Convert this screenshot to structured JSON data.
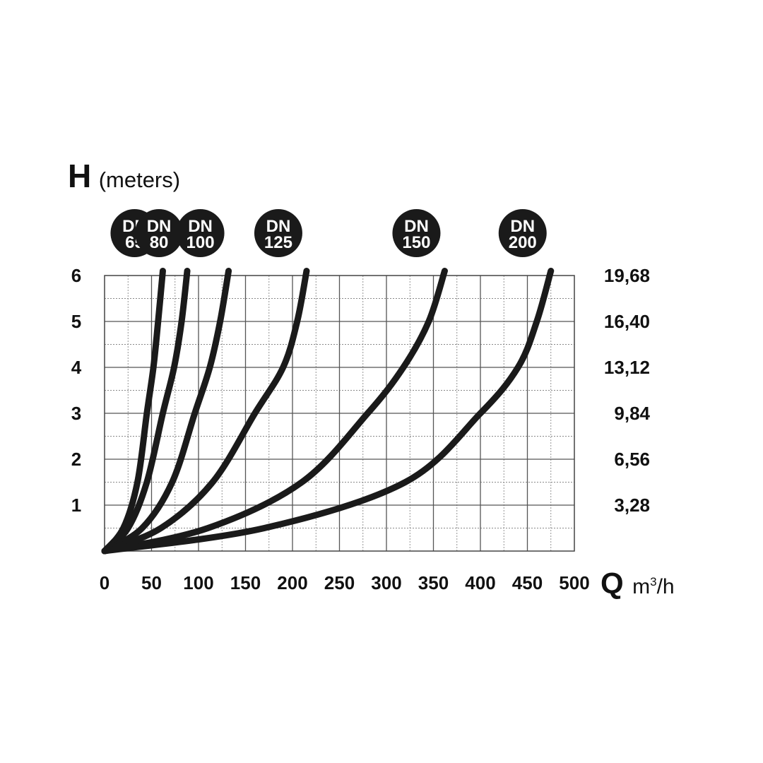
{
  "chart_data": {
    "type": "line",
    "y_axis": {
      "symbol": "H",
      "unit": "(meters)",
      "ylim": [
        0,
        6
      ],
      "ticks": [
        "1",
        "2",
        "3",
        "4",
        "5",
        "6"
      ]
    },
    "y2_axis": {
      "ticks": [
        "3,28",
        "6,56",
        "9,84",
        "13,12",
        "16,40",
        "19,68"
      ]
    },
    "x_axis": {
      "symbol": "Q",
      "unit": "m",
      "unit_sup": "3",
      "unit_suffix": "/h",
      "xlim": [
        0,
        500
      ],
      "ticks": [
        "0",
        "50",
        "100",
        "150",
        "200",
        "250",
        "300",
        "350",
        "400",
        "450",
        "500"
      ]
    },
    "grid": true,
    "series": [
      {
        "name": "DN 65",
        "badge": [
          "DN",
          "65"
        ],
        "x": [
          0,
          20,
          35,
          45,
          52,
          57,
          62
        ],
        "y": [
          0,
          0.5,
          1.5,
          3,
          4,
          5,
          6.1
        ]
      },
      {
        "name": "DN 80",
        "badge": [
          "DN",
          "80"
        ],
        "x": [
          0,
          25,
          45,
          62,
          74,
          82,
          88
        ],
        "y": [
          0,
          0.5,
          1.5,
          3,
          4,
          5,
          6.1
        ]
      },
      {
        "name": "DN 100",
        "badge": [
          "DN",
          "100"
        ],
        "x": [
          0,
          40,
          72,
          96,
          112,
          123,
          132
        ],
        "y": [
          0,
          0.5,
          1.5,
          3,
          4,
          5,
          6.1
        ]
      },
      {
        "name": "DN 125",
        "badge": [
          "DN",
          "125"
        ],
        "x": [
          0,
          60,
          115,
          160,
          190,
          205,
          215
        ],
        "y": [
          0,
          0.5,
          1.5,
          3,
          4,
          5,
          6.1
        ]
      },
      {
        "name": "DN 150",
        "badge": [
          "DN",
          "150"
        ],
        "x": [
          0,
          110,
          210,
          280,
          318,
          345,
          362
        ],
        "y": [
          0,
          0.5,
          1.5,
          3,
          4,
          5,
          6.1
        ]
      },
      {
        "name": "DN 200",
        "badge": [
          "DN",
          "200"
        ],
        "x": [
          0,
          170,
          320,
          400,
          440,
          460,
          475
        ],
        "y": [
          0,
          0.5,
          1.5,
          3,
          4,
          5,
          6.1
        ]
      }
    ]
  }
}
